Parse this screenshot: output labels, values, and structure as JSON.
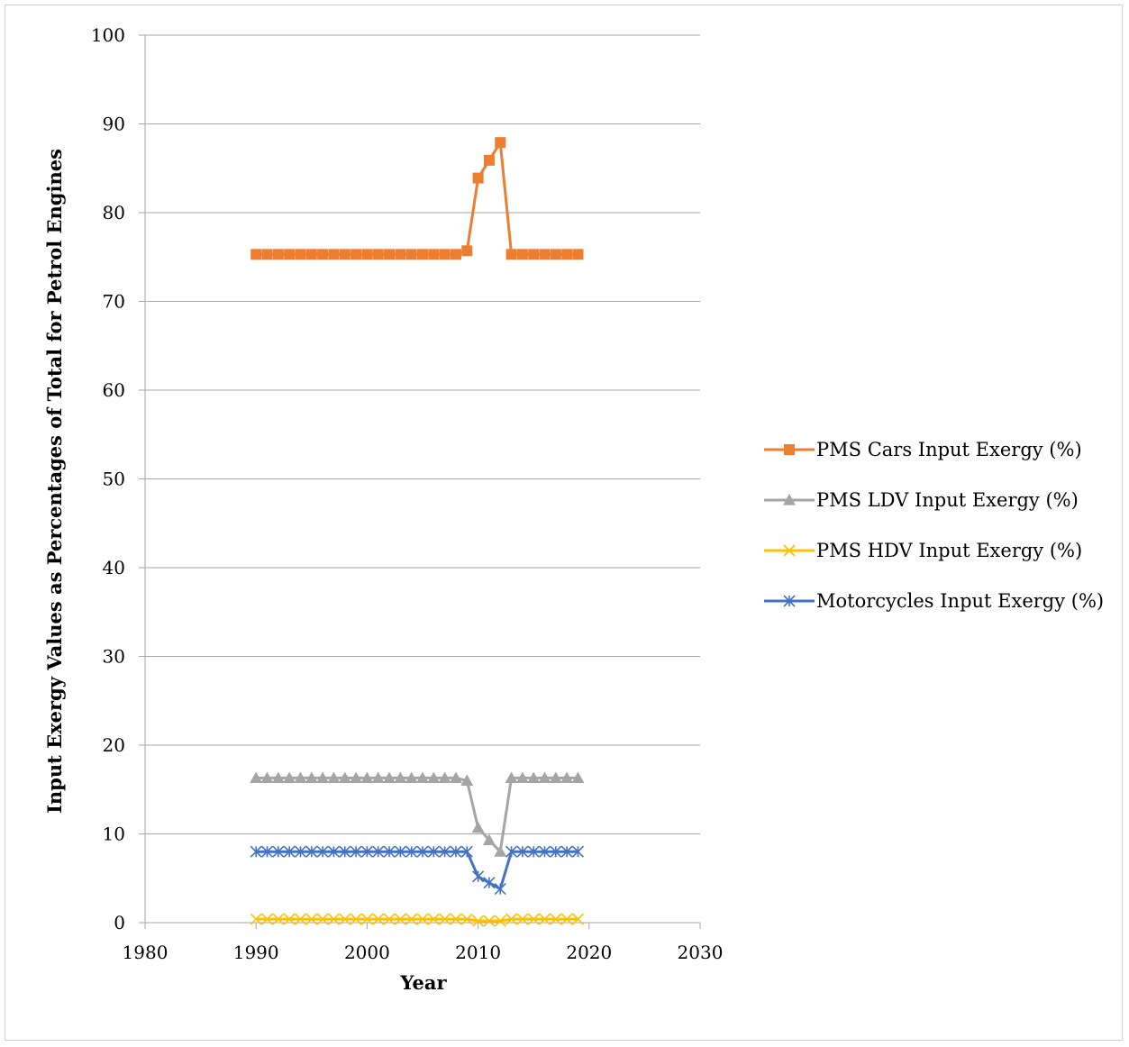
{
  "chart_data": {
    "type": "line",
    "title": "",
    "xlabel": "Year",
    "ylabel": "Input Exergy Values as Percentages of Total for Petrol Engines",
    "xlim": [
      1980,
      2030
    ],
    "ylim": [
      0,
      100
    ],
    "x_ticks": [
      1980,
      1990,
      2000,
      2010,
      2020,
      2030
    ],
    "y_ticks": [
      0,
      10,
      20,
      30,
      40,
      50,
      60,
      70,
      80,
      90,
      100
    ],
    "grid": "horizontal",
    "legend_position": "right",
    "x": [
      1990,
      1991,
      1992,
      1993,
      1994,
      1995,
      1996,
      1997,
      1998,
      1999,
      2000,
      2001,
      2002,
      2003,
      2004,
      2005,
      2006,
      2007,
      2008,
      2009,
      2010,
      2011,
      2012,
      2013,
      2014,
      2015,
      2016,
      2017,
      2018,
      2019
    ],
    "series": [
      {
        "name": "PMS Cars Input Exergy (%)",
        "color": "#ED7D31",
        "marker": "square",
        "values": [
          75.3,
          75.3,
          75.3,
          75.3,
          75.3,
          75.3,
          75.3,
          75.3,
          75.3,
          75.3,
          75.3,
          75.3,
          75.3,
          75.3,
          75.3,
          75.3,
          75.3,
          75.3,
          75.3,
          75.7,
          83.9,
          85.9,
          87.9,
          75.3,
          75.3,
          75.3,
          75.3,
          75.3,
          75.3,
          75.3
        ]
      },
      {
        "name": "PMS LDV Input Exergy (%)",
        "color": "#A5A5A5",
        "marker": "triangle",
        "values": [
          16.3,
          16.3,
          16.3,
          16.3,
          16.3,
          16.3,
          16.3,
          16.3,
          16.3,
          16.3,
          16.3,
          16.3,
          16.3,
          16.3,
          16.3,
          16.3,
          16.3,
          16.3,
          16.3,
          16.0,
          10.7,
          9.3,
          8.0,
          16.3,
          16.3,
          16.3,
          16.3,
          16.3,
          16.3,
          16.3
        ]
      },
      {
        "name": "PMS HDV Input Exergy (%)",
        "color": "#FFC000",
        "marker": "x",
        "values": [
          0.4,
          0.4,
          0.4,
          0.4,
          0.4,
          0.4,
          0.4,
          0.4,
          0.4,
          0.4,
          0.4,
          0.4,
          0.4,
          0.4,
          0.4,
          0.4,
          0.4,
          0.4,
          0.4,
          0.4,
          0.2,
          0.2,
          0.2,
          0.4,
          0.4,
          0.4,
          0.4,
          0.4,
          0.4,
          0.4
        ]
      },
      {
        "name": "Motorcycles Input Exergy (%)",
        "color": "#4472C4",
        "marker": "asterisk",
        "values": [
          8.0,
          8.0,
          8.0,
          8.0,
          8.0,
          8.0,
          8.0,
          8.0,
          8.0,
          8.0,
          8.0,
          8.0,
          8.0,
          8.0,
          8.0,
          8.0,
          8.0,
          8.0,
          8.0,
          8.0,
          5.2,
          4.5,
          3.8,
          8.0,
          8.0,
          8.0,
          8.0,
          8.0,
          8.0,
          8.0
        ]
      }
    ]
  }
}
